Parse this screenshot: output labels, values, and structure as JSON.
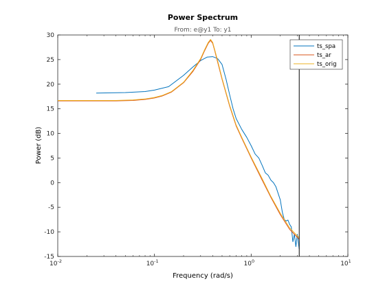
{
  "chart_data": {
    "type": "line",
    "title": "Power Spectrum",
    "subtitle": "From: e@y1  To: y1",
    "xlabel": "Frequency  (rad/s)",
    "ylabel": "Power (dB)",
    "xscale": "log",
    "xlim": [
      0.01,
      10
    ],
    "ylim": [
      -15,
      30
    ],
    "grid": false,
    "legend_position": "top-right",
    "x_ticks": [
      {
        "base": "10",
        "exp": "-2"
      },
      {
        "base": "10",
        "exp": "-1"
      },
      {
        "base": "10",
        "exp": "0"
      },
      {
        "base": "10",
        "exp": "1"
      }
    ],
    "y_ticks": [
      "-15",
      "-10",
      "-5",
      "0",
      "5",
      "10",
      "15",
      "20",
      "25",
      "30"
    ],
    "y_tick_values": [
      -15,
      -10,
      -5,
      0,
      5,
      10,
      15,
      20,
      25,
      30
    ],
    "nyquist_line_x": 3.14,
    "series": [
      {
        "name": "ts_spa",
        "color": "#0072BD",
        "x": [
          0.025,
          0.05,
          0.08,
          0.1,
          0.14,
          0.2,
          0.25,
          0.3,
          0.35,
          0.4,
          0.45,
          0.5,
          0.55,
          0.6,
          0.65,
          0.7,
          0.8,
          0.9,
          1.0,
          1.1,
          1.2,
          1.3,
          1.4,
          1.5,
          1.6,
          1.7,
          1.8,
          2.0,
          2.1,
          2.2,
          2.3,
          2.4,
          2.5,
          2.6,
          2.7,
          2.8,
          2.9,
          3.0,
          3.14
        ],
        "y": [
          18.2,
          18.3,
          18.5,
          18.8,
          19.5,
          21.8,
          23.5,
          24.8,
          25.5,
          25.6,
          25.2,
          24.0,
          21.0,
          17.8,
          15.0,
          13.0,
          10.8,
          9.2,
          7.5,
          5.8,
          5.0,
          3.5,
          2.0,
          1.5,
          0.5,
          0.0,
          -0.8,
          -3.5,
          -6.0,
          -7.5,
          -7.8,
          -7.6,
          -8.5,
          -9.0,
          -12.0,
          -10.5,
          -13.0,
          -10.5,
          -13.5
        ]
      },
      {
        "name": "ts_ar",
        "color": "#D95319",
        "x": [
          0.01,
          0.02,
          0.04,
          0.06,
          0.08,
          0.1,
          0.12,
          0.15,
          0.2,
          0.25,
          0.3,
          0.33,
          0.36,
          0.38,
          0.4,
          0.42,
          0.45,
          0.5,
          0.6,
          0.7,
          0.8,
          1.0,
          1.3,
          1.6,
          2.0,
          2.5,
          3.14
        ],
        "y": [
          16.6,
          16.6,
          16.6,
          16.7,
          16.9,
          17.2,
          17.6,
          18.4,
          20.3,
          22.6,
          25.0,
          26.8,
          28.3,
          28.9,
          28.3,
          26.8,
          24.5,
          21.0,
          15.5,
          11.5,
          9.0,
          5.0,
          0.5,
          -3.0,
          -6.5,
          -9.5,
          -11.5
        ]
      },
      {
        "name": "ts_orig",
        "color": "#EDB120",
        "x": [
          0.01,
          0.02,
          0.04,
          0.06,
          0.08,
          0.1,
          0.12,
          0.15,
          0.2,
          0.25,
          0.3,
          0.33,
          0.36,
          0.38,
          0.4,
          0.42,
          0.45,
          0.5,
          0.6,
          0.7,
          0.8,
          1.0,
          1.3,
          1.6,
          2.0,
          2.5,
          3.14
        ],
        "y": [
          16.7,
          16.7,
          16.7,
          16.8,
          17.0,
          17.3,
          17.7,
          18.5,
          20.4,
          22.8,
          25.2,
          27.0,
          28.5,
          29.1,
          28.5,
          27.0,
          24.8,
          21.2,
          15.7,
          11.7,
          9.2,
          5.2,
          0.8,
          -2.8,
          -6.2,
          -9.2,
          -11.2
        ]
      }
    ]
  }
}
